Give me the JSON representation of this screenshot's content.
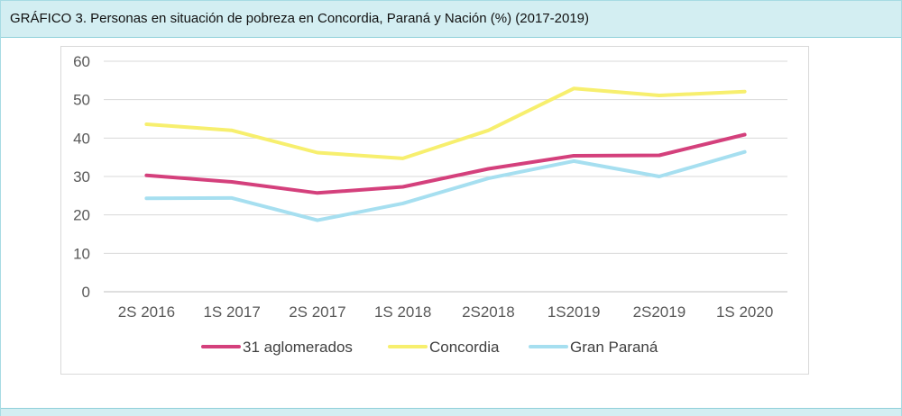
{
  "title": "GRÁFICO 3. Personas en situación de pobreza en Concordia, Paraná y Nación (%) (2017-2019)",
  "chart_data": {
    "type": "line",
    "title": "GRÁFICO 3. Personas en situación de pobreza en Concordia, Paraná y Nación (%) (2017-2019)",
    "categories": [
      "2S 2016",
      "1S 2017",
      "2S 2017",
      "1S 2018",
      "2S2018",
      "1S2019",
      "2S2019",
      "1S 2020"
    ],
    "yticks": [
      "0",
      "10",
      "20",
      "30",
      "40",
      "50",
      "60"
    ],
    "ylim": [
      0,
      60
    ],
    "grid": true,
    "legend_position": "bottom",
    "series": [
      {
        "name": "31 aglomerados",
        "color": "#d4407c",
        "values": [
          30.3,
          28.6,
          25.7,
          27.3,
          32.0,
          35.4,
          35.5,
          40.9
        ]
      },
      {
        "name": "Concordia",
        "color": "#f7ef6e",
        "values": [
          43.6,
          42.0,
          36.2,
          34.7,
          42.0,
          52.9,
          51.1,
          52.1
        ]
      },
      {
        "name": "Gran Paraná",
        "color": "#a6dff0",
        "values": [
          24.3,
          24.4,
          18.6,
          23.0,
          29.5,
          34.0,
          30.0,
          36.4
        ]
      }
    ]
  }
}
